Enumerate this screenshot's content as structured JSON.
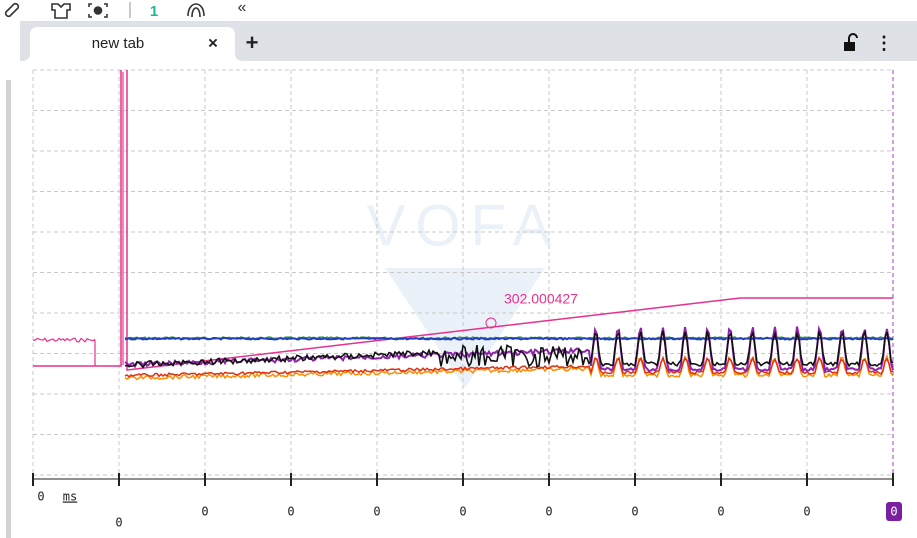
{
  "toolbar": {
    "badge": "1",
    "collapse": "«"
  },
  "tab": {
    "title": "new tab",
    "close": "×",
    "new": "+",
    "menu": "⋮"
  },
  "plot": {
    "watermark": "VOFA",
    "cursor_label": "302.000427"
  },
  "axis": {
    "origin": "0",
    "unit": "ms",
    "first_tick": "0",
    "ticks": [
      "0",
      "0",
      "0",
      "0",
      "0",
      "0",
      "0",
      "0"
    ],
    "last_tick": "0"
  }
}
